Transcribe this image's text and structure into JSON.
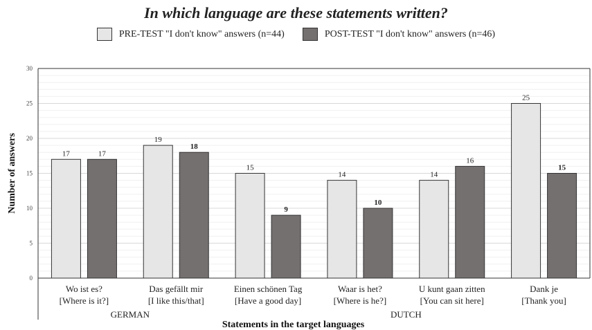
{
  "chart_data": {
    "type": "bar",
    "title": "In which language are these statements written?",
    "ylabel": "Number of answers",
    "xlabel": "Statements in the target languages",
    "ylim": [
      0,
      30
    ],
    "yticks": [
      0,
      5,
      10,
      15,
      20,
      25,
      30
    ],
    "categories": [
      {
        "line1": "Wo ist es?",
        "line2": "[Where is it?]"
      },
      {
        "line1": "Das gefällt mir",
        "line2": "[I like this/that]"
      },
      {
        "line1": "Einen schönen Tag",
        "line2": "[Have a good day]"
      },
      {
        "line1": "Waar is het?",
        "line2": "[Where is he?]"
      },
      {
        "line1": "U kunt gaan zitten",
        "line2": "[You can sit here]"
      },
      {
        "line1": "Dank je",
        "line2": "[Thank you]"
      }
    ],
    "groups": [
      "GERMAN",
      "DUTCH"
    ],
    "series": [
      {
        "name": "PRE-TEST \"I don't know\" answers (n=44)",
        "color": "#e6e6e6",
        "values": [
          17,
          19,
          15,
          14,
          14,
          25
        ],
        "label_bold": [
          false,
          false,
          false,
          false,
          false,
          false
        ]
      },
      {
        "name": "POST-TEST \"I don't know\" answers (n=46)",
        "color": "#757070",
        "values": [
          17,
          18,
          9,
          10,
          16,
          15
        ],
        "label_bold": [
          false,
          true,
          true,
          true,
          false,
          true
        ]
      }
    ],
    "grid": true,
    "legend_position": "top-center"
  }
}
